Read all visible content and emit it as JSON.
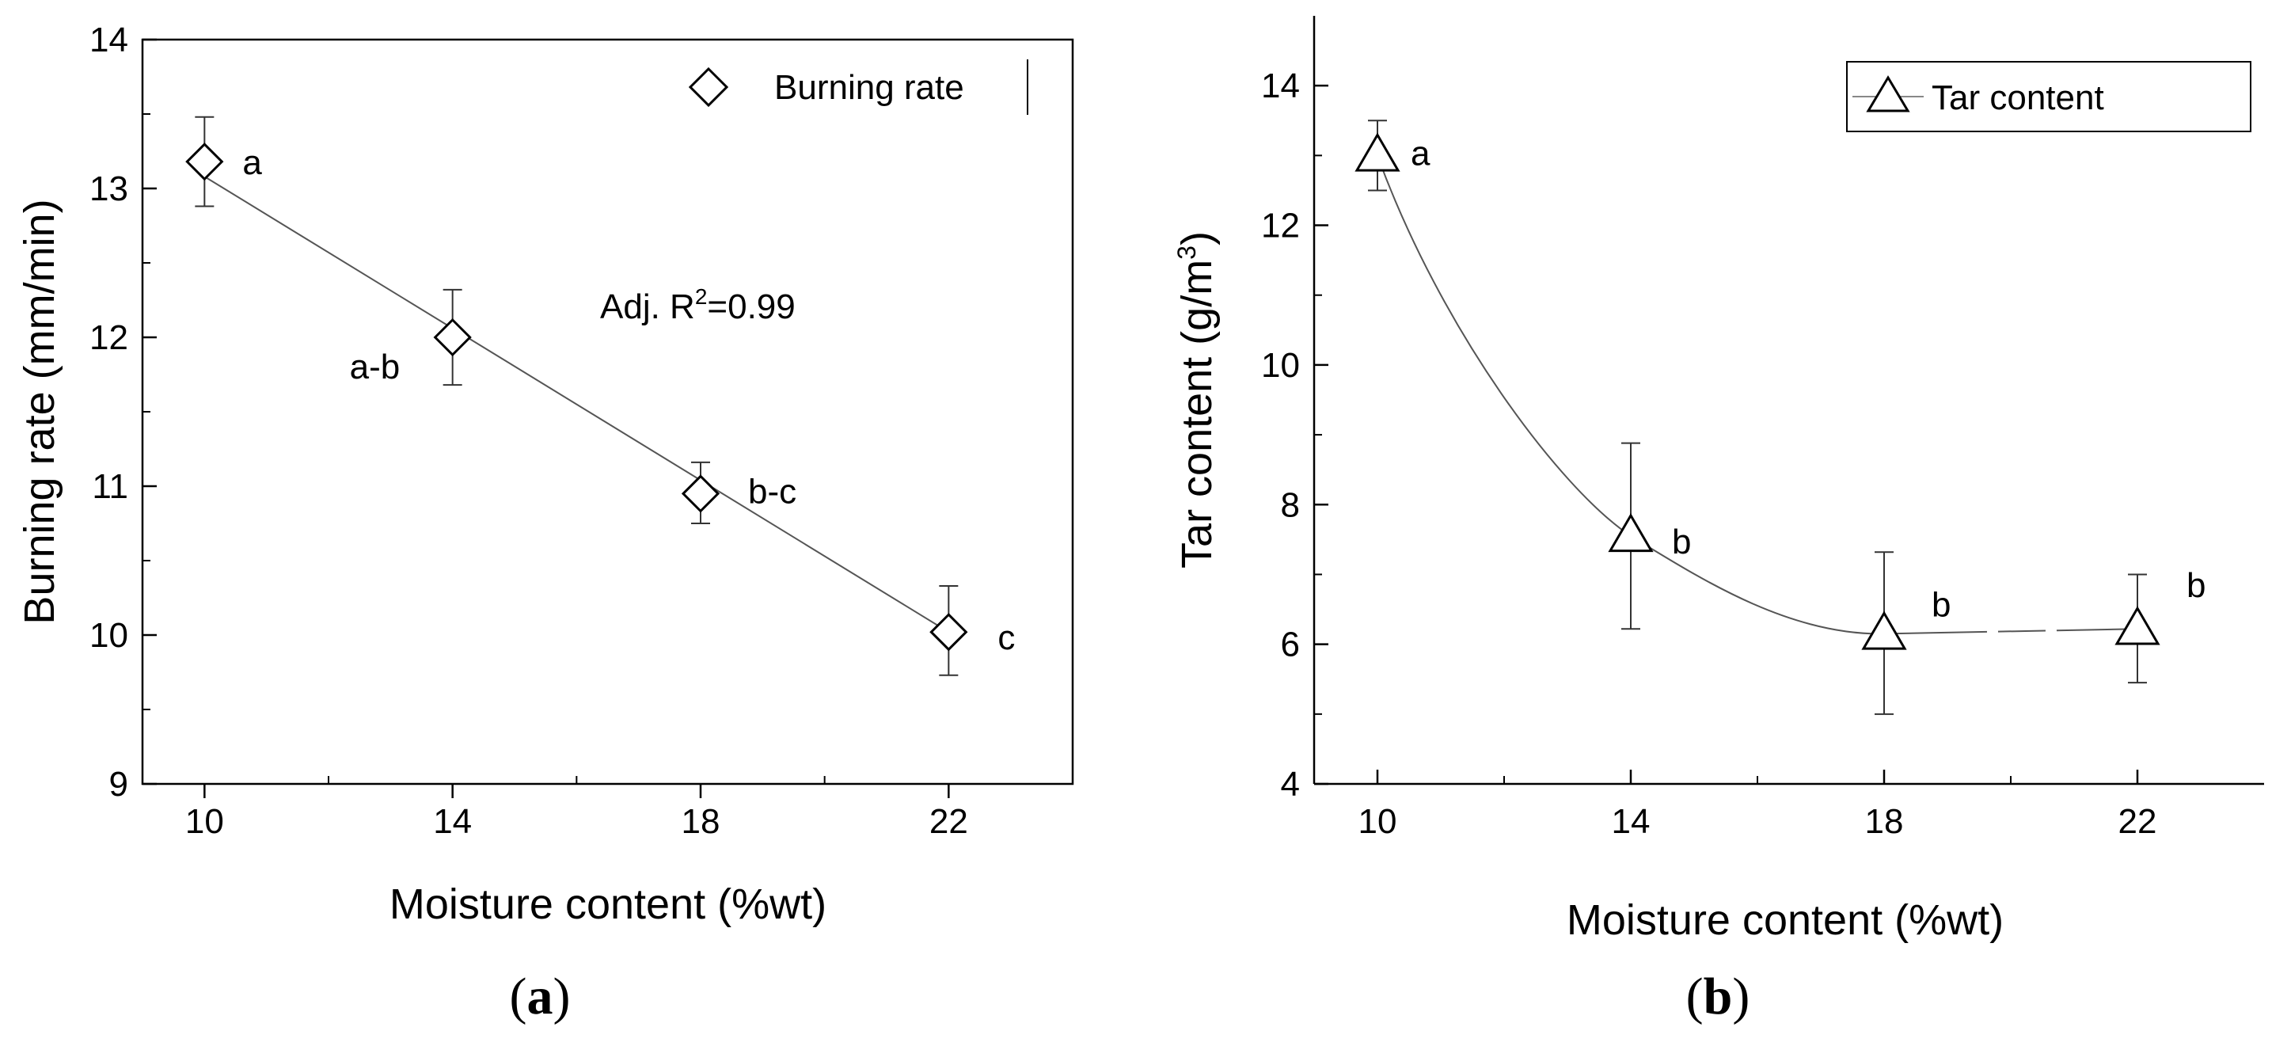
{
  "chart_data": [
    {
      "type": "scatter",
      "panel_label": "a",
      "title": "",
      "xlabel": "Moisture content (%wt)",
      "ylabel": "Burning rate (mm/min)",
      "xlim": [
        9,
        24
      ],
      "ylim": [
        9,
        14
      ],
      "x_ticks": [
        10,
        14,
        18,
        22
      ],
      "y_ticks": [
        9,
        10,
        11,
        12,
        13,
        14
      ],
      "legend": {
        "label": "Burning rate",
        "placement": "top-right",
        "marker": "diamond"
      },
      "annotation": {
        "prefix": "Adj. R",
        "sup": "2",
        "suffix": "=0.99"
      },
      "fit": {
        "type": "linear",
        "x": [
          10,
          22
        ],
        "y": [
          13.08,
          10.02
        ]
      },
      "series": [
        {
          "name": "Burning rate",
          "marker": "diamond",
          "x": [
            10,
            14,
            18,
            22
          ],
          "y": [
            13.18,
            12.0,
            10.95,
            10.02
          ],
          "err_low": [
            12.88,
            11.68,
            10.75,
            9.73
          ],
          "err_high": [
            13.48,
            12.32,
            11.16,
            10.33
          ],
          "letters": [
            "a",
            "a-b",
            "b-c",
            "c"
          ]
        }
      ]
    },
    {
      "type": "scatter",
      "panel_label": "b",
      "title": "",
      "xlabel": "Moisture content (%wt)",
      "ylabel_prefix": "Tar content (g/m",
      "ylabel_sup": "3",
      "ylabel_suffix": ")",
      "xlim": [
        9,
        24
      ],
      "ylim": [
        4,
        15
      ],
      "x_ticks": [
        10,
        14,
        18,
        22
      ],
      "y_ticks": [
        4,
        6,
        8,
        10,
        12,
        14
      ],
      "legend": {
        "label": "Tar content",
        "placement": "top-right",
        "marker": "triangle"
      },
      "fit": {
        "type": "smooth-curve"
      },
      "series": [
        {
          "name": "Tar content",
          "marker": "triangle",
          "x": [
            10,
            14,
            18,
            22
          ],
          "y": [
            13.0,
            7.55,
            6.15,
            6.22
          ],
          "err_low": [
            12.5,
            6.22,
            5.0,
            5.45
          ],
          "err_high": [
            13.5,
            8.88,
            7.32,
            7.0
          ],
          "letters": [
            "a",
            "b",
            "b",
            "b"
          ]
        }
      ]
    }
  ]
}
